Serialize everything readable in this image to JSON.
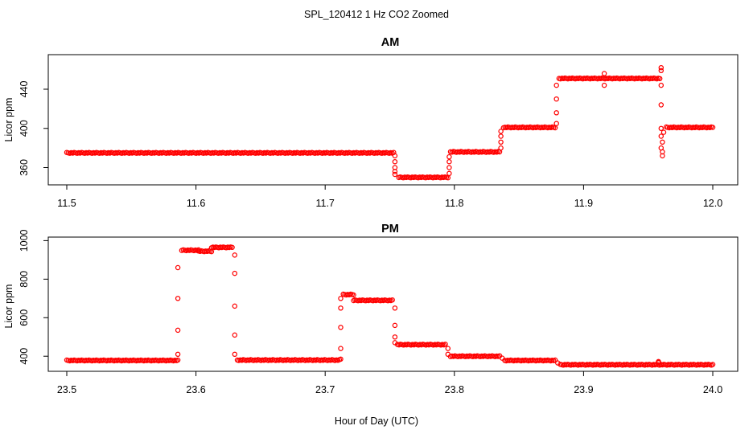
{
  "figure": {
    "title": "SPL_120412  1 Hz CO2 Zoomed",
    "xlabel": "Hour of Day (UTC)"
  },
  "chart_data": [
    {
      "type": "scatter",
      "title": "AM",
      "xlabel": "",
      "ylabel": "Licor ppm",
      "xlim": [
        11.5,
        12.0
      ],
      "ylim": [
        344,
        472
      ],
      "xticks": [
        "11.5",
        "11.6",
        "11.7",
        "11.8",
        "11.9",
        "12.0"
      ],
      "xtick_values": [
        11.5,
        11.6,
        11.7,
        11.8,
        11.9,
        12.0
      ],
      "yticks": [
        "360",
        "400",
        "440"
      ],
      "ytick_values": [
        360,
        400,
        440
      ],
      "grid": false,
      "color": "#ff0000",
      "marker": "open-circle",
      "segments": [
        {
          "x0": 11.5,
          "x1": 11.753,
          "y": 375
        },
        {
          "x0": 11.757,
          "x1": 11.795,
          "y": 350
        },
        {
          "x0": 11.797,
          "x1": 11.835,
          "y": 376
        },
        {
          "x0": 11.838,
          "x1": 11.878,
          "y": 401
        },
        {
          "x0": 11.881,
          "x1": 11.959,
          "y": 451
        },
        {
          "x0": 11.964,
          "x1": 12.0,
          "y": 401
        }
      ],
      "transitions": [
        {
          "x": 11.754,
          "y": [
            372,
            366,
            360,
            356,
            353
          ]
        },
        {
          "x": 11.796,
          "y": [
            354,
            360,
            366,
            371
          ]
        },
        {
          "x": 11.836,
          "y": [
            380,
            386,
            392,
            397
          ]
        },
        {
          "x": 11.879,
          "y": [
            405,
            416,
            430,
            444
          ]
        },
        {
          "x": 11.916,
          "y": [
            444,
            456
          ]
        },
        {
          "x": 11.96,
          "y": [
            462,
            459,
            444,
            424,
            400,
            392,
            380
          ]
        },
        {
          "x": 11.961,
          "y": [
            376,
            372,
            386
          ]
        },
        {
          "x": 11.962,
          "y": [
            396
          ]
        }
      ]
    },
    {
      "type": "scatter",
      "title": "PM",
      "xlabel": "Hour of Day (UTC)",
      "ylabel": "Licor ppm",
      "xlim": [
        23.5,
        24.0
      ],
      "ylim": [
        330,
        1010
      ],
      "xticks": [
        "23.5",
        "23.6",
        "23.7",
        "23.8",
        "23.9",
        "24.0"
      ],
      "xtick_values": [
        23.5,
        23.6,
        23.7,
        23.8,
        23.9,
        24.0
      ],
      "yticks": [
        "400",
        "600",
        "800",
        "1000"
      ],
      "ytick_values": [
        400,
        600,
        800,
        1000
      ],
      "grid": false,
      "color": "#ff0000",
      "marker": "open-circle",
      "segments": [
        {
          "x0": 23.5,
          "x1": 23.586,
          "y": 378
        },
        {
          "x0": 23.589,
          "x1": 23.602,
          "y": 950
        },
        {
          "x0": 23.602,
          "x1": 23.612,
          "y": 945
        },
        {
          "x0": 23.612,
          "x1": 23.628,
          "y": 965
        },
        {
          "x0": 23.632,
          "x1": 23.711,
          "y": 380
        },
        {
          "x0": 23.714,
          "x1": 23.722,
          "y": 720
        },
        {
          "x0": 23.722,
          "x1": 23.752,
          "y": 690
        },
        {
          "x0": 23.756,
          "x1": 23.793,
          "y": 460
        },
        {
          "x0": 23.797,
          "x1": 23.835,
          "y": 400
        },
        {
          "x0": 23.839,
          "x1": 23.878,
          "y": 378
        },
        {
          "x0": 23.882,
          "x1": 24.0,
          "y": 356
        }
      ],
      "transitions": [
        {
          "x": 23.586,
          "y": [
            410,
            535,
            700,
            860
          ]
        },
        {
          "x": 23.63,
          "y": [
            925,
            830,
            660,
            510,
            410
          ]
        },
        {
          "x": 23.712,
          "y": [
            385,
            440,
            550,
            650,
            700
          ]
        },
        {
          "x": 23.754,
          "y": [
            650,
            560,
            500,
            470
          ]
        },
        {
          "x": 23.795,
          "y": [
            440,
            410
          ]
        },
        {
          "x": 23.837,
          "y": [
            390
          ]
        },
        {
          "x": 23.88,
          "y": [
            365
          ]
        },
        {
          "x": 23.958,
          "y": [
            372,
            368,
            366
          ]
        }
      ]
    }
  ]
}
